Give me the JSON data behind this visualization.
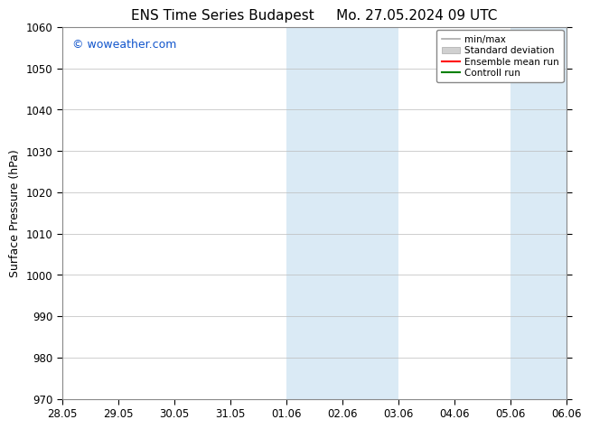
{
  "title_left": "ENS Time Series Budapest",
  "title_right": "Mo. 27.05.2024 09 UTC",
  "ylabel": "Surface Pressure (hPa)",
  "ylim": [
    970,
    1060
  ],
  "yticks": [
    970,
    980,
    990,
    1000,
    1010,
    1020,
    1030,
    1040,
    1050,
    1060
  ],
  "x_labels": [
    "28.05",
    "29.05",
    "30.05",
    "31.05",
    "01.06",
    "02.06",
    "03.06",
    "04.06",
    "05.06",
    "06.06"
  ],
  "x_values": [
    0,
    1,
    2,
    3,
    4,
    5,
    6,
    7,
    8,
    9
  ],
  "xlim": [
    0,
    9
  ],
  "shaded_regions": [
    {
      "x_start": 4,
      "x_end": 5,
      "color": "#daeaf5"
    },
    {
      "x_start": 5,
      "x_end": 6,
      "color": "#daeaf5"
    },
    {
      "x_start": 8,
      "x_end": 9,
      "color": "#daeaf5"
    }
  ],
  "watermark": "© woweather.com",
  "watermark_color": "#1155cc",
  "legend_items": [
    {
      "label": "min/max",
      "color": "#aaaaaa",
      "style": "minmax"
    },
    {
      "label": "Standard deviation",
      "color": "#cccccc",
      "style": "fill"
    },
    {
      "label": "Ensemble mean run",
      "color": "red",
      "style": "line"
    },
    {
      "label": "Controll run",
      "color": "green",
      "style": "line"
    }
  ],
  "background_color": "#ffffff",
  "grid_color": "#bbbbbb",
  "tick_label_fontsize": 8.5,
  "axis_label_fontsize": 9,
  "title_fontsize": 11
}
